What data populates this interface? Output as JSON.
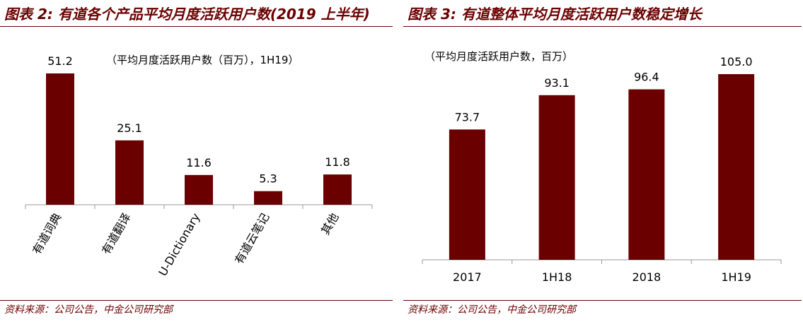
{
  "panels": [
    {
      "title": "图表 2: 有道各个产品平均月度活跃用户数(2019 上半年)",
      "unit_note": "（平均月度活跃用户数（百万），1H19）",
      "source": "资料来源：公司公告，中金公司研究部"
    },
    {
      "title": "图表 3: 有道整体平均月度活跃用户数稳定增长",
      "unit_note": "（平均月度活跃用户数，百万）",
      "source": "资料来源：公司公告，中金公司研究部"
    }
  ],
  "chart_data": [
    {
      "type": "bar",
      "title": "图表 2: 有道各个产品平均月度活跃用户数(2019 上半年)",
      "ylabel": "（平均月度活跃用户数（百万），1H19）",
      "categories": [
        "有道词典",
        "有道翻译",
        "U-Dictionary",
        "有道云笔记",
        "其他"
      ],
      "values": [
        51.2,
        25.1,
        11.6,
        5.3,
        11.8
      ],
      "value_labels": [
        "51.2",
        "25.1",
        "11.6",
        "5.3",
        "11.8"
      ],
      "ylim": [
        0,
        51.2
      ],
      "grid": false,
      "color": "#6b0000"
    },
    {
      "type": "bar",
      "title": "图表 3: 有道整体平均月度活跃用户数稳定增长",
      "ylabel": "（平均月度活跃用户数，百万）",
      "categories": [
        "2017",
        "1H18",
        "2018",
        "1H19"
      ],
      "values": [
        73.7,
        93.1,
        96.4,
        105.0
      ],
      "value_labels": [
        "73.7",
        "93.1",
        "96.4",
        "105.0"
      ],
      "ylim": [
        0,
        105.0
      ],
      "grid": false,
      "color": "#6b0000"
    }
  ]
}
